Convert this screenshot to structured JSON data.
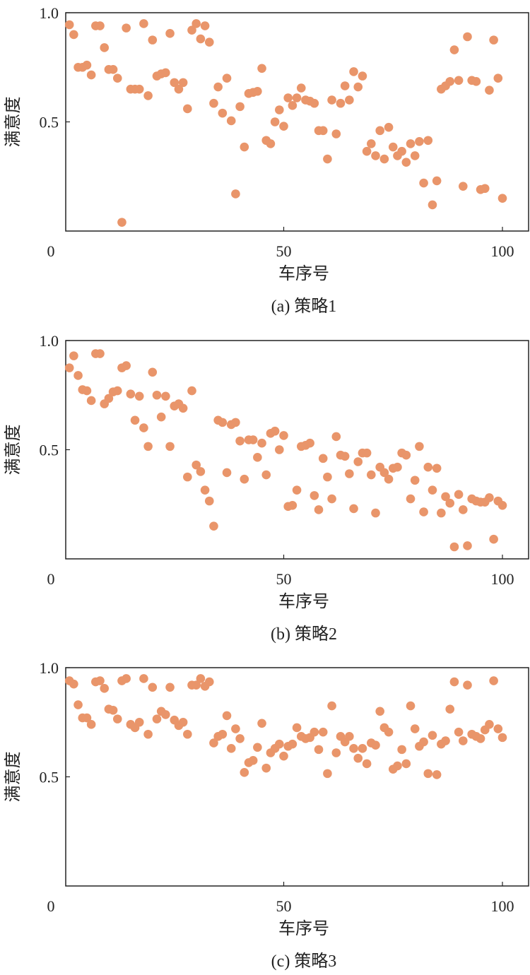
{
  "chart_data": [
    {
      "type": "scatter",
      "caption": "(a) 策略1",
      "xlabel": "车序号",
      "ylabel": "满意度",
      "xlim": [
        0,
        105
      ],
      "ylim": [
        0,
        1
      ],
      "xticks": [
        "0",
        "50",
        "100"
      ],
      "yticks": [
        "0.5",
        "1.0"
      ],
      "color": "#E9956A",
      "x": [
        1,
        2,
        3,
        4,
        5,
        6,
        7,
        8,
        9,
        10,
        11,
        12,
        13,
        14,
        15,
        16,
        17,
        18,
        19,
        20,
        21,
        22,
        23,
        24,
        25,
        26,
        27,
        28,
        29,
        30,
        31,
        32,
        33,
        34,
        35,
        36,
        37,
        38,
        39,
        40,
        41,
        42,
        43,
        44,
        45,
        46,
        47,
        48,
        49,
        50,
        51,
        52,
        53,
        54,
        55,
        56,
        57,
        58,
        59,
        60,
        61,
        62,
        63,
        64,
        65,
        66,
        67,
        68,
        69,
        70,
        71,
        72,
        73,
        74,
        75,
        76,
        77,
        78,
        79,
        80,
        81,
        82,
        83,
        84,
        85,
        86,
        87,
        88,
        89,
        90,
        91,
        92,
        93,
        94,
        95,
        96,
        97,
        98,
        99,
        100
      ],
      "y": [
        0.945,
        0.9,
        0.75,
        0.75,
        0.76,
        0.715,
        0.94,
        0.94,
        0.84,
        0.74,
        0.74,
        0.7,
        0.04,
        0.93,
        0.65,
        0.65,
        0.65,
        0.95,
        0.62,
        0.875,
        0.71,
        0.72,
        0.725,
        0.905,
        0.68,
        0.65,
        0.68,
        0.56,
        0.92,
        0.95,
        0.88,
        0.94,
        0.865,
        0.585,
        0.66,
        0.54,
        0.7,
        0.505,
        0.17,
        0.57,
        0.385,
        0.63,
        0.635,
        0.64,
        0.745,
        0.415,
        0.4,
        0.5,
        0.555,
        0.48,
        0.61,
        0.575,
        0.61,
        0.655,
        0.6,
        0.595,
        0.585,
        0.46,
        0.46,
        0.33,
        0.6,
        0.445,
        0.585,
        0.665,
        0.6,
        0.73,
        0.66,
        0.71,
        0.365,
        0.4,
        0.345,
        0.46,
        0.33,
        0.475,
        0.385,
        0.345,
        0.365,
        0.315,
        0.4,
        0.345,
        0.41,
        0.22,
        0.415,
        0.12,
        0.23,
        0.65,
        0.665,
        0.685,
        0.83,
        0.69,
        0.205,
        0.89,
        0.69,
        0.685,
        0.19,
        0.195,
        0.645,
        0.875,
        0.7,
        0.15
      ]
    },
    {
      "type": "scatter",
      "caption": "(b) 策略2",
      "xlabel": "车序号",
      "ylabel": "满意度",
      "xlim": [
        0,
        105
      ],
      "ylim": [
        0,
        1
      ],
      "xticks": [
        "0",
        "50",
        "100"
      ],
      "yticks": [
        "0.5",
        "1.0"
      ],
      "color": "#E9956A",
      "x": [
        1,
        2,
        3,
        4,
        5,
        6,
        7,
        8,
        9,
        10,
        11,
        12,
        13,
        14,
        15,
        16,
        17,
        18,
        19,
        20,
        21,
        22,
        23,
        24,
        25,
        26,
        27,
        28,
        29,
        30,
        31,
        32,
        33,
        34,
        35,
        36,
        37,
        38,
        39,
        40,
        41,
        42,
        43,
        44,
        45,
        46,
        47,
        48,
        49,
        50,
        51,
        52,
        53,
        54,
        55,
        56,
        57,
        58,
        59,
        60,
        61,
        62,
        63,
        64,
        65,
        66,
        67,
        68,
        69,
        70,
        71,
        72,
        73,
        74,
        75,
        76,
        77,
        78,
        79,
        80,
        81,
        82,
        83,
        84,
        85,
        86,
        87,
        88,
        89,
        90,
        91,
        92,
        93,
        94,
        95,
        96,
        97,
        98,
        99,
        100
      ],
      "y": [
        0.875,
        0.93,
        0.84,
        0.775,
        0.77,
        0.725,
        0.94,
        0.94,
        0.71,
        0.735,
        0.765,
        0.77,
        0.875,
        0.885,
        0.755,
        0.635,
        0.745,
        0.6,
        0.515,
        0.855,
        0.75,
        0.65,
        0.745,
        0.515,
        0.7,
        0.71,
        0.69,
        0.375,
        0.77,
        0.43,
        0.4,
        0.315,
        0.265,
        0.15,
        0.635,
        0.625,
        0.395,
        0.615,
        0.625,
        0.54,
        0.365,
        0.545,
        0.545,
        0.465,
        0.53,
        0.385,
        0.575,
        0.585,
        0.5,
        0.565,
        0.24,
        0.245,
        0.315,
        0.515,
        0.52,
        0.53,
        0.29,
        0.225,
        0.46,
        0.375,
        0.275,
        0.56,
        0.475,
        0.47,
        0.39,
        0.23,
        0.445,
        0.485,
        0.485,
        0.385,
        0.21,
        0.42,
        0.395,
        0.365,
        0.415,
        0.42,
        0.485,
        0.475,
        0.275,
        0.36,
        0.515,
        0.215,
        0.42,
        0.315,
        0.415,
        0.21,
        0.285,
        0.255,
        0.055,
        0.295,
        0.225,
        0.06,
        0.275,
        0.265,
        0.26,
        0.26,
        0.28,
        0.09,
        0.265,
        0.245
      ]
    },
    {
      "type": "scatter",
      "caption": "(c) 策略3",
      "xlabel": "车序号",
      "ylabel": "满意度",
      "xlim": [
        0,
        105
      ],
      "ylim": [
        0,
        1
      ],
      "xticks": [
        "0",
        "50",
        "100"
      ],
      "yticks": [
        "0.5",
        "1.0"
      ],
      "color": "#E9956A",
      "x": [
        1,
        2,
        3,
        4,
        5,
        6,
        7,
        8,
        9,
        10,
        11,
        12,
        13,
        14,
        15,
        16,
        17,
        18,
        19,
        20,
        21,
        22,
        23,
        24,
        25,
        26,
        27,
        28,
        29,
        30,
        31,
        32,
        33,
        34,
        35,
        36,
        37,
        38,
        39,
        40,
        41,
        42,
        43,
        44,
        45,
        46,
        47,
        48,
        49,
        50,
        51,
        52,
        53,
        54,
        55,
        56,
        57,
        58,
        59,
        60,
        61,
        62,
        63,
        64,
        65,
        66,
        67,
        68,
        69,
        70,
        71,
        72,
        73,
        74,
        75,
        76,
        77,
        78,
        79,
        80,
        81,
        82,
        83,
        84,
        85,
        86,
        87,
        88,
        89,
        90,
        91,
        92,
        93,
        94,
        95,
        96,
        97,
        98,
        99,
        100
      ],
      "y": [
        0.94,
        0.925,
        0.83,
        0.77,
        0.77,
        0.74,
        0.935,
        0.94,
        0.905,
        0.81,
        0.805,
        0.765,
        0.94,
        0.95,
        0.74,
        0.725,
        0.75,
        0.95,
        0.695,
        0.91,
        0.765,
        0.8,
        0.785,
        0.91,
        0.76,
        0.735,
        0.75,
        0.695,
        0.92,
        0.92,
        0.95,
        0.915,
        0.935,
        0.655,
        0.685,
        0.695,
        0.78,
        0.63,
        0.72,
        0.675,
        0.52,
        0.565,
        0.575,
        0.635,
        0.745,
        0.54,
        0.61,
        0.63,
        0.65,
        0.595,
        0.64,
        0.65,
        0.725,
        0.685,
        0.675,
        0.68,
        0.705,
        0.625,
        0.705,
        0.515,
        0.825,
        0.61,
        0.685,
        0.66,
        0.685,
        0.63,
        0.585,
        0.63,
        0.56,
        0.655,
        0.645,
        0.8,
        0.725,
        0.705,
        0.535,
        0.55,
        0.625,
        0.56,
        0.825,
        0.72,
        0.64,
        0.66,
        0.515,
        0.69,
        0.51,
        0.65,
        0.665,
        0.81,
        0.935,
        0.705,
        0.665,
        0.92,
        0.695,
        0.685,
        0.675,
        0.715,
        0.74,
        0.94,
        0.72,
        0.68
      ]
    }
  ]
}
